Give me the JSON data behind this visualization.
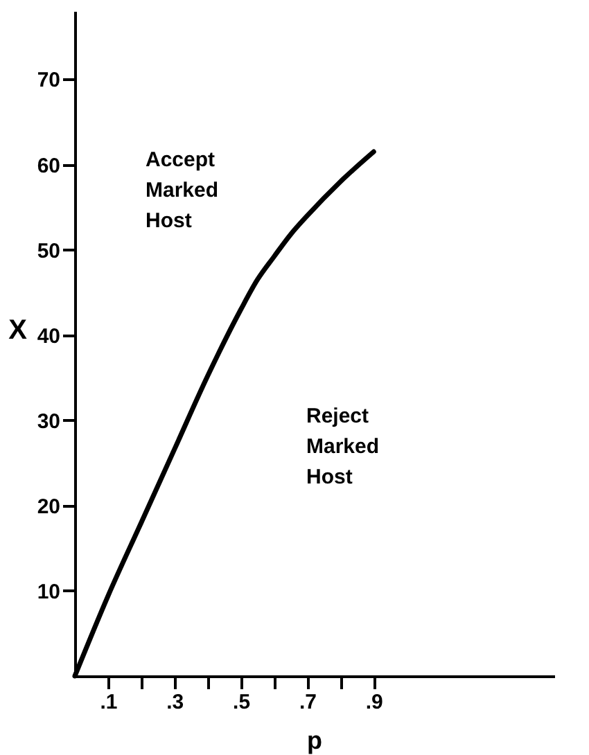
{
  "chart_data": {
    "type": "line",
    "xlabel": "p",
    "ylabel": "X",
    "x": [
      0,
      0.1,
      0.2,
      0.3,
      0.4,
      0.5,
      0.55,
      0.6,
      0.65,
      0.7,
      0.8,
      0.9
    ],
    "series": [
      {
        "color": "#000000",
        "values": [
          0,
          9.4,
          18,
          26.6,
          35.2,
          43,
          46.5,
          49.2,
          51.8,
          54,
          58,
          61.5
        ]
      }
    ],
    "xlim": [
      0,
      1.44
    ],
    "xticks": [
      {
        "value": 0.1,
        "label": ".1"
      },
      {
        "value": 0.2,
        "label": null
      },
      {
        "value": 0.3,
        "label": ".3"
      },
      {
        "value": 0.4,
        "label": null
      },
      {
        "value": 0.5,
        "label": ".5"
      },
      {
        "value": 0.6,
        "label": null
      },
      {
        "value": 0.7,
        "label": ".7"
      },
      {
        "value": 0.8,
        "label": null
      },
      {
        "value": 0.9,
        "label": ".9"
      }
    ],
    "ylim": [
      0,
      78
    ],
    "yticks": [
      10,
      20,
      30,
      40,
      50,
      60,
      70
    ],
    "annotations": [
      "Accept Marked Host",
      "Reject Marked Host"
    ],
    "grid": false,
    "legend": false,
    "marker": "none",
    "line_style": "solid"
  }
}
